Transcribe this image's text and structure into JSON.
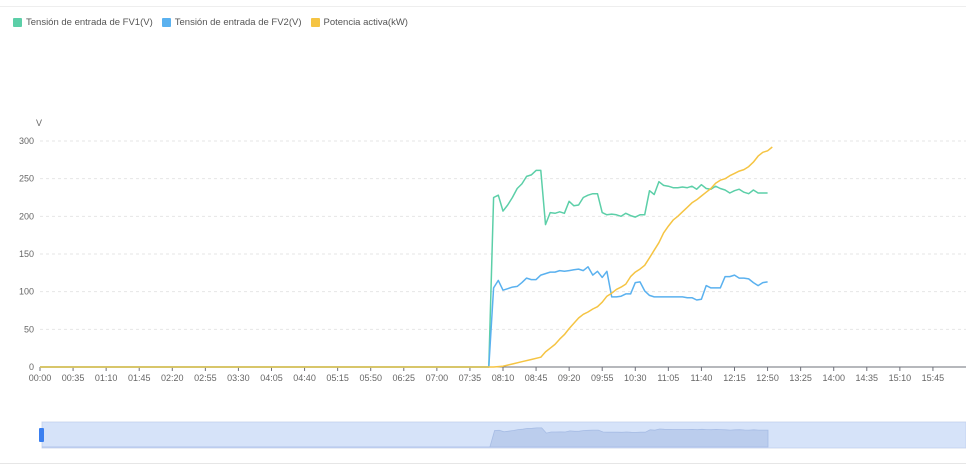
{
  "legend": [
    {
      "label": "Tensión de entrada de FV1(V)",
      "color": "#5ccfa8"
    },
    {
      "label": "Tensión de entrada de FV2(V)",
      "color": "#5ab1ef"
    },
    {
      "label": "Potencia activa(kW)",
      "color": "#f5c443"
    }
  ],
  "chart_data": {
    "type": "line",
    "ylabel": "V",
    "ylim": [
      0,
      300
    ],
    "y_ticks": [
      0,
      50,
      100,
      150,
      200,
      250,
      300
    ],
    "x_labels": [
      "00:00",
      "00:35",
      "01:10",
      "01:45",
      "02:20",
      "02:55",
      "03:30",
      "04:05",
      "04:40",
      "05:15",
      "05:50",
      "06:25",
      "07:00",
      "07:35",
      "08:10",
      "08:45",
      "09:20",
      "09:55",
      "10:30",
      "11:05",
      "11:40",
      "12:15",
      "12:50",
      "13:25",
      "14:00",
      "14:35",
      "15:10",
      "15:45"
    ],
    "x_range_minutes": [
      0,
      980
    ],
    "grid": true,
    "legend_position": "top-left",
    "series": [
      {
        "name": "Tensión de entrada de FV1(V)",
        "color": "#5ccfa8",
        "points": [
          [
            0,
            0
          ],
          [
            470,
            0
          ],
          [
            475,
            0
          ],
          [
            480,
            225
          ],
          [
            485,
            228
          ],
          [
            490,
            207
          ],
          [
            495,
            215
          ],
          [
            500,
            225
          ],
          [
            505,
            237
          ],
          [
            510,
            243
          ],
          [
            515,
            253
          ],
          [
            520,
            255
          ],
          [
            525,
            261
          ],
          [
            530,
            261
          ],
          [
            535,
            189
          ],
          [
            540,
            205
          ],
          [
            545,
            204
          ],
          [
            550,
            206
          ],
          [
            555,
            204
          ],
          [
            560,
            220
          ],
          [
            565,
            214
          ],
          [
            570,
            215
          ],
          [
            575,
            225
          ],
          [
            580,
            228
          ],
          [
            585,
            230
          ],
          [
            590,
            230
          ],
          [
            595,
            205
          ],
          [
            600,
            202
          ],
          [
            605,
            203
          ],
          [
            610,
            202
          ],
          [
            615,
            200
          ],
          [
            620,
            204
          ],
          [
            625,
            201
          ],
          [
            630,
            199
          ],
          [
            635,
            202
          ],
          [
            640,
            202
          ],
          [
            645,
            234
          ],
          [
            650,
            229
          ],
          [
            655,
            246
          ],
          [
            660,
            241
          ],
          [
            665,
            240
          ],
          [
            670,
            238
          ],
          [
            675,
            238
          ],
          [
            680,
            239
          ],
          [
            685,
            238
          ],
          [
            690,
            240
          ],
          [
            695,
            236
          ],
          [
            700,
            242
          ],
          [
            705,
            237
          ],
          [
            710,
            236
          ],
          [
            715,
            240
          ],
          [
            720,
            237
          ],
          [
            725,
            235
          ],
          [
            730,
            231
          ],
          [
            735,
            234
          ],
          [
            740,
            236
          ],
          [
            745,
            232
          ],
          [
            750,
            230
          ],
          [
            755,
            235
          ],
          [
            760,
            231
          ],
          [
            765,
            231
          ],
          [
            770,
            231
          ]
        ]
      },
      {
        "name": "Tensión de entrada de FV2(V)",
        "color": "#5ab1ef",
        "points": [
          [
            0,
            0
          ],
          [
            470,
            0
          ],
          [
            475,
            0
          ],
          [
            480,
            105
          ],
          [
            485,
            115
          ],
          [
            490,
            102
          ],
          [
            495,
            104
          ],
          [
            500,
            106
          ],
          [
            505,
            107
          ],
          [
            510,
            112
          ],
          [
            515,
            118
          ],
          [
            520,
            116
          ],
          [
            525,
            116
          ],
          [
            530,
            122
          ],
          [
            535,
            124
          ],
          [
            540,
            126
          ],
          [
            545,
            126
          ],
          [
            550,
            128
          ],
          [
            555,
            127
          ],
          [
            560,
            128
          ],
          [
            565,
            129
          ],
          [
            570,
            130
          ],
          [
            575,
            128
          ],
          [
            580,
            133
          ],
          [
            585,
            122
          ],
          [
            590,
            127
          ],
          [
            595,
            119
          ],
          [
            600,
            127
          ],
          [
            605,
            93
          ],
          [
            610,
            93
          ],
          [
            615,
            94
          ],
          [
            620,
            97
          ],
          [
            625,
            97
          ],
          [
            630,
            112
          ],
          [
            635,
            113
          ],
          [
            640,
            101
          ],
          [
            645,
            95
          ],
          [
            650,
            93
          ],
          [
            655,
            93
          ],
          [
            660,
            93
          ],
          [
            665,
            93
          ],
          [
            670,
            93
          ],
          [
            675,
            93
          ],
          [
            680,
            93
          ],
          [
            685,
            92
          ],
          [
            690,
            92
          ],
          [
            695,
            89
          ],
          [
            700,
            90
          ],
          [
            705,
            108
          ],
          [
            710,
            105
          ],
          [
            715,
            105
          ],
          [
            720,
            105
          ],
          [
            725,
            120
          ],
          [
            730,
            120
          ],
          [
            735,
            122
          ],
          [
            740,
            118
          ],
          [
            745,
            118
          ],
          [
            750,
            117
          ],
          [
            755,
            112
          ],
          [
            760,
            108
          ],
          [
            765,
            112
          ],
          [
            770,
            113
          ]
        ]
      },
      {
        "name": "Potencia activa(kW)",
        "color": "#f5c443",
        "points": [
          [
            0,
            0
          ],
          [
            480,
            0
          ],
          [
            490,
            1
          ],
          [
            500,
            4
          ],
          [
            510,
            7
          ],
          [
            520,
            10
          ],
          [
            530,
            13
          ],
          [
            535,
            20
          ],
          [
            540,
            25
          ],
          [
            545,
            30
          ],
          [
            550,
            37
          ],
          [
            555,
            43
          ],
          [
            560,
            51
          ],
          [
            565,
            58
          ],
          [
            570,
            65
          ],
          [
            575,
            70
          ],
          [
            580,
            73
          ],
          [
            585,
            77
          ],
          [
            590,
            80
          ],
          [
            595,
            86
          ],
          [
            600,
            94
          ],
          [
            605,
            98
          ],
          [
            610,
            103
          ],
          [
            615,
            106
          ],
          [
            620,
            110
          ],
          [
            625,
            120
          ],
          [
            630,
            126
          ],
          [
            635,
            130
          ],
          [
            640,
            135
          ],
          [
            645,
            145
          ],
          [
            650,
            155
          ],
          [
            655,
            165
          ],
          [
            660,
            178
          ],
          [
            665,
            187
          ],
          [
            670,
            195
          ],
          [
            675,
            200
          ],
          [
            680,
            206
          ],
          [
            685,
            212
          ],
          [
            690,
            218
          ],
          [
            695,
            222
          ],
          [
            700,
            227
          ],
          [
            705,
            232
          ],
          [
            710,
            237
          ],
          [
            715,
            244
          ],
          [
            720,
            248
          ],
          [
            725,
            250
          ],
          [
            730,
            254
          ],
          [
            735,
            257
          ],
          [
            740,
            260
          ],
          [
            745,
            262
          ],
          [
            750,
            266
          ],
          [
            755,
            272
          ],
          [
            760,
            280
          ],
          [
            765,
            285
          ],
          [
            770,
            287
          ],
          [
            775,
            292
          ]
        ]
      }
    ]
  },
  "slider": {
    "range_pct": [
      0,
      100
    ]
  }
}
